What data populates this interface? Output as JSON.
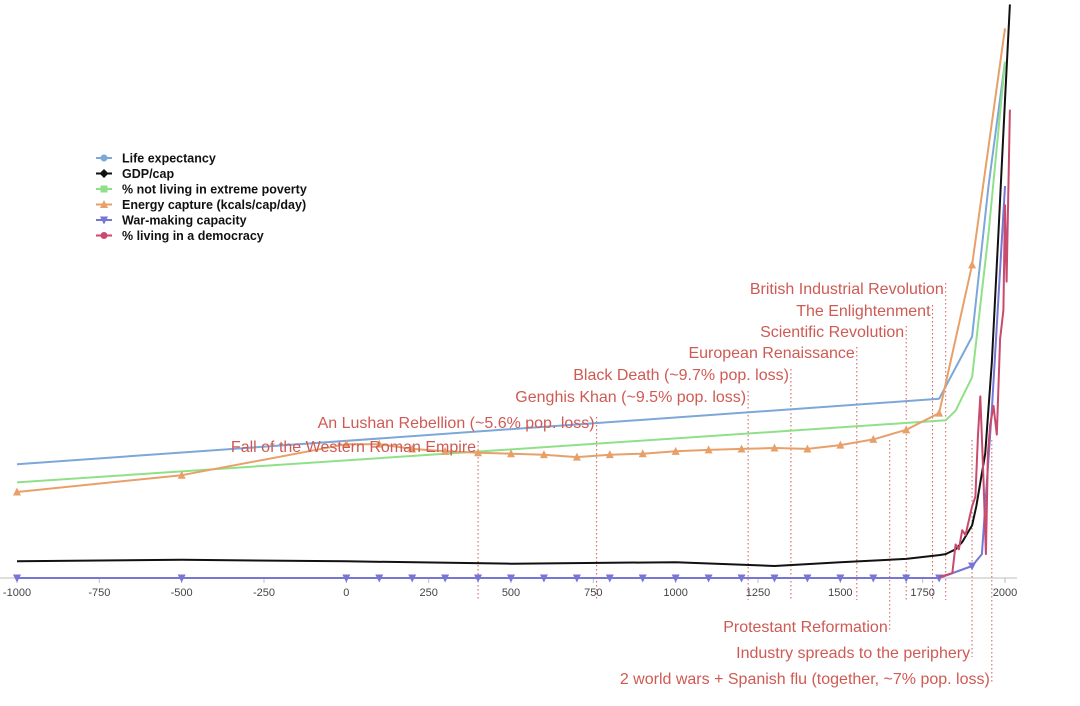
{
  "chart_data": {
    "type": "line",
    "title": "",
    "xlabel": "",
    "ylabel": "",
    "xlim": [
      -1000,
      2000
    ],
    "x_ticks": [
      -1000,
      -750,
      -500,
      -250,
      0,
      250,
      500,
      750,
      1000,
      1250,
      1500,
      1750,
      2000
    ],
    "x_tick_labels": [
      "-1000",
      "-750",
      "-500",
      "-250",
      "0",
      "250",
      "500",
      "750",
      "1000",
      "1250",
      "1500",
      "1750",
      "2000"
    ],
    "legend_position": "top-left",
    "grid": false,
    "series": [
      {
        "name": "Life expectancy",
        "color": "#7da7d9",
        "marker": "circle",
        "points": [
          [
            -1000,
            0.238
          ],
          [
            1800,
            0.375
          ],
          [
            1900,
            0.505
          ],
          [
            1950,
            0.82
          ],
          [
            2000,
            1.08
          ]
        ]
      },
      {
        "name": "GDP/cap",
        "color": "#111111",
        "marker": "diamond",
        "points": [
          [
            -1000,
            0.035
          ],
          [
            -500,
            0.038
          ],
          [
            0,
            0.035
          ],
          [
            500,
            0.03
          ],
          [
            1000,
            0.033
          ],
          [
            1300,
            0.025
          ],
          [
            1500,
            0.033
          ],
          [
            1700,
            0.04
          ],
          [
            1800,
            0.048
          ],
          [
            1820,
            0.05
          ],
          [
            1850,
            0.06
          ],
          [
            1870,
            0.075
          ],
          [
            1900,
            0.11
          ],
          [
            1913,
            0.15
          ],
          [
            1940,
            0.26
          ],
          [
            1960,
            0.45
          ],
          [
            1980,
            0.72
          ],
          [
            2000,
            1.0
          ],
          [
            2015,
            1.2
          ]
        ]
      },
      {
        "name": "% not living in extreme poverty",
        "color": "#90e08a",
        "marker": "square",
        "points": [
          [
            -1000,
            0.2
          ],
          [
            1820,
            0.33
          ],
          [
            1850,
            0.35
          ],
          [
            1900,
            0.42
          ],
          [
            1950,
            0.72
          ],
          [
            2000,
            1.08
          ]
        ]
      },
      {
        "name": "Energy capture (kcals/cap/day)",
        "color": "#e8a06a",
        "marker": "triangle-up",
        "points": [
          [
            -1000,
            0.18
          ],
          [
            -500,
            0.215
          ],
          [
            0,
            0.28
          ],
          [
            100,
            0.28
          ],
          [
            200,
            0.27
          ],
          [
            300,
            0.265
          ],
          [
            400,
            0.262
          ],
          [
            500,
            0.26
          ],
          [
            600,
            0.258
          ],
          [
            700,
            0.253
          ],
          [
            800,
            0.258
          ],
          [
            900,
            0.26
          ],
          [
            1000,
            0.265
          ],
          [
            1100,
            0.268
          ],
          [
            1200,
            0.27
          ],
          [
            1300,
            0.272
          ],
          [
            1400,
            0.27
          ],
          [
            1500,
            0.278
          ],
          [
            1600,
            0.29
          ],
          [
            1700,
            0.31
          ],
          [
            1800,
            0.345
          ],
          [
            1900,
            0.655
          ],
          [
            2000,
            1.15
          ]
        ]
      },
      {
        "name": "War-making capacity",
        "color": "#7676d8",
        "marker": "triangle-down",
        "points": [
          [
            -1000,
            0.0
          ],
          [
            -500,
            0.0
          ],
          [
            0,
            0.0
          ],
          [
            100,
            0.0
          ],
          [
            200,
            0.0
          ],
          [
            300,
            0.0
          ],
          [
            400,
            0.0
          ],
          [
            500,
            0.0
          ],
          [
            600,
            0.0
          ],
          [
            700,
            0.0
          ],
          [
            800,
            0.0
          ],
          [
            900,
            0.0
          ],
          [
            1000,
            0.0
          ],
          [
            1100,
            0.0
          ],
          [
            1200,
            0.0
          ],
          [
            1300,
            0.0
          ],
          [
            1400,
            0.0
          ],
          [
            1500,
            0.0
          ],
          [
            1600,
            0.0
          ],
          [
            1700,
            0.0
          ],
          [
            1800,
            0.0
          ],
          [
            1900,
            0.025
          ],
          [
            1930,
            0.05
          ],
          [
            1960,
            0.35
          ],
          [
            2000,
            0.82
          ]
        ]
      },
      {
        "name": "% living in a democracy",
        "color": "#c84a6c",
        "marker": "circle",
        "points": [
          [
            1800,
            0.002
          ],
          [
            1840,
            0.01
          ],
          [
            1850,
            0.07
          ],
          [
            1860,
            0.06
          ],
          [
            1870,
            0.1
          ],
          [
            1880,
            0.09
          ],
          [
            1890,
            0.12
          ],
          [
            1900,
            0.15
          ],
          [
            1910,
            0.17
          ],
          [
            1918,
            0.3
          ],
          [
            1925,
            0.38
          ],
          [
            1935,
            0.2
          ],
          [
            1942,
            0.05
          ],
          [
            1948,
            0.26
          ],
          [
            1955,
            0.32
          ],
          [
            1965,
            0.36
          ],
          [
            1975,
            0.3
          ],
          [
            1985,
            0.5
          ],
          [
            1995,
            0.56
          ],
          [
            2000,
            0.78
          ],
          [
            2005,
            0.62
          ],
          [
            2015,
            0.98
          ]
        ]
      }
    ],
    "annotations_above": [
      {
        "year": 1820,
        "label": "British Industrial Revolution"
      },
      {
        "year": 1780,
        "label": "The Enlightenment"
      },
      {
        "year": 1700,
        "label": "Scientific Revolution"
      },
      {
        "year": 1550,
        "label": "European Renaissance"
      },
      {
        "year": 1350,
        "label": "Black Death (~9.7% pop. loss)"
      },
      {
        "year": 1220,
        "label": "Genghis Khan (~9.5% pop. loss)"
      },
      {
        "year": 760,
        "label": "An Lushan Rebellion (~5.6% pop. loss)"
      },
      {
        "year": 400,
        "label": "Fall of the Western Roman Empire"
      }
    ],
    "annotations_below": [
      {
        "year": 1650,
        "label": "Protestant Reformation"
      },
      {
        "year": 1900,
        "label": "Industry spreads to the periphery"
      },
      {
        "year": 1960,
        "label": "2 world wars + Spanish flu (together, ~7%  pop. loss)"
      }
    ]
  }
}
